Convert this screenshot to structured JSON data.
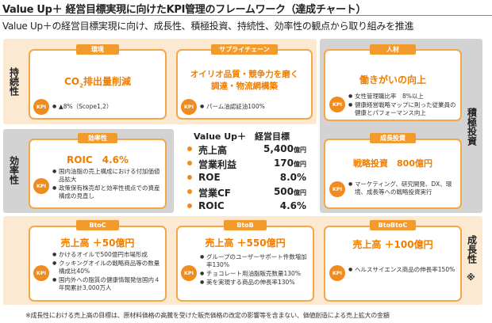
{
  "title": "Value Up＋ 経営目標実現に向けたKPI管理のフレームワーク（達成チャート）",
  "subtitle": "Value Up＋の経営目標実現に向け、成長性、積極投資、持続性、効率性の観点から取り組みを推進",
  "side_labels": {
    "sustainability": "持続性",
    "efficiency": "効率性",
    "investment": "積極投資",
    "growth": "成長性",
    "growth_mark": "※"
  },
  "kpi_label": "KPI",
  "cards": {
    "environment": {
      "tag": "環境",
      "heading_prefix": "CO",
      "heading_sub": "2",
      "heading_suffix": "排出量削減",
      "items": [
        "▲8%（Scope1,2）"
      ]
    },
    "supply_chain": {
      "tag": "サプライチェーン",
      "heading_line1": "オイリオ品質・競争力を磨く",
      "heading_line2": "調達・物流網構築",
      "items": [
        "パーム油認証油100%"
      ]
    },
    "human": {
      "tag": "人材",
      "heading": "働きがいの向上",
      "items": [
        "女性管理職比率　8%以上",
        "健康経営戦略マップに則った従業員の健康とパフォーマンス向上"
      ]
    },
    "efficiency": {
      "tag": "効率性",
      "heading": "ROIC　4.6%",
      "items": [
        "国内油脂の売上構成における付加価値品拡大",
        "政策保有株売却と効率性視点での資産構成の見直し"
      ]
    },
    "growth_investment": {
      "tag": "成長投資",
      "heading": "戦略投資　800億円",
      "items": [
        "マーケティング、研究開発、DX、環境、成長等への戦略投資実行"
      ]
    },
    "btoc": {
      "tag": "BtoC",
      "heading": "売上高 ＋50億円",
      "items": [
        "かけるオイルで500億円市場形成",
        "クッキングオイルの戦略商品等の数量構成比40%",
        "国内外への脂質の健康情報発信国内４年間累計3,000万人"
      ]
    },
    "btob": {
      "tag": "BtoB",
      "heading": "売上高 ＋550億円",
      "items": [
        "グループのユーザーサポート件数増加率130%",
        "チョコレート用油脂販売数量130%",
        "美を実現する商品の伸長率130%"
      ]
    },
    "btobtoc": {
      "tag": "BtoBtoC",
      "heading": "売上高 ＋100億円",
      "items": [
        "ヘルスサイエンス商品の伸長率150%"
      ]
    }
  },
  "targets": {
    "title": "Value Up＋　経営目標",
    "rows": [
      {
        "label": "売上高",
        "value": "5,400",
        "unit": "億円"
      },
      {
        "label": "営業利益",
        "value": "170",
        "unit": "億円"
      },
      {
        "label": "ROE",
        "value": "8.0%",
        "unit": ""
      },
      {
        "label": "営業CF",
        "value": "500",
        "unit": "億円"
      },
      {
        "label": "ROIC",
        "value": "4.6%",
        "unit": ""
      }
    ]
  },
  "footnote": "※成長性における売上高の目標は、原材料価格の高騰を受けた販売価格の改定の影響等を含まない、価値創造による売上拡大の金額",
  "colors": {
    "accent": "#f08b1d",
    "card_border": "#f3a74a",
    "band": "#fbe9d2",
    "grey_band": "#d3d3d3",
    "heading": "#f07d00"
  }
}
